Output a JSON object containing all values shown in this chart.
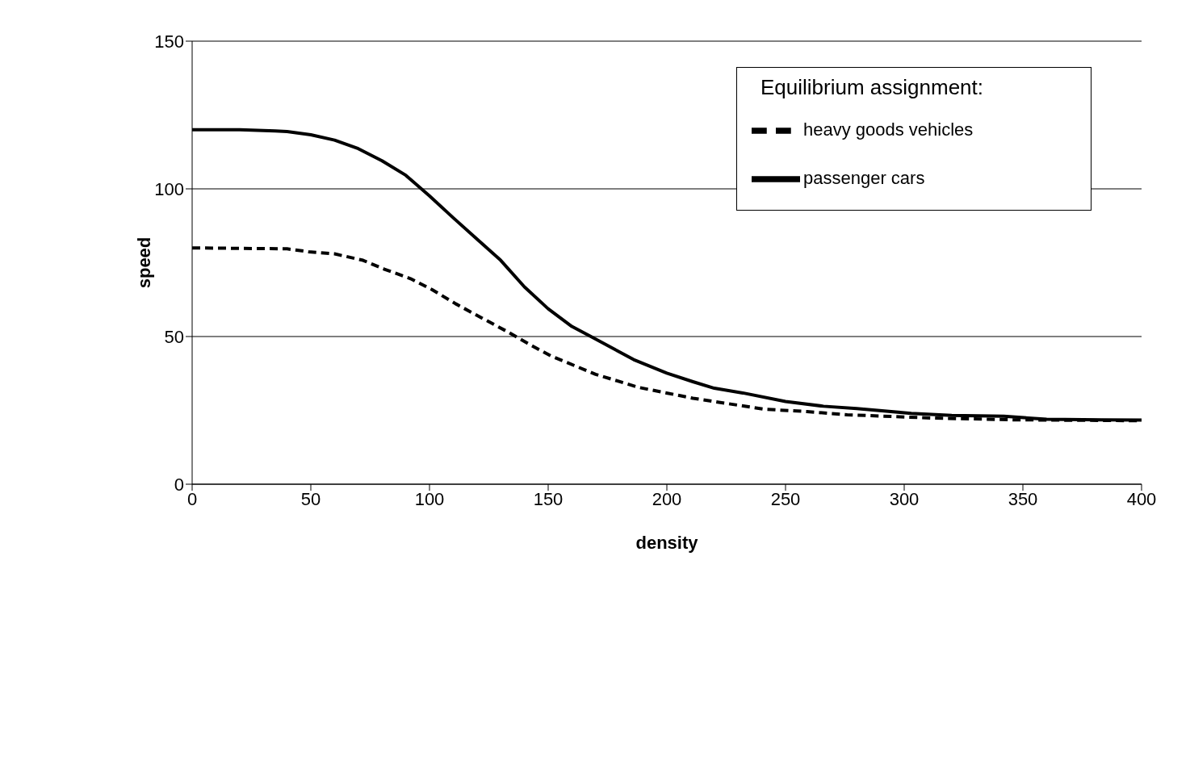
{
  "chart_data": {
    "type": "line",
    "xlabel": "density",
    "ylabel": "speed",
    "legend_title": "Equilibrium assignment:",
    "xlim": [
      0,
      400
    ],
    "xticks": [
      0,
      50,
      100,
      150,
      200,
      250,
      300,
      350,
      400
    ],
    "ylim": [
      0,
      150
    ],
    "yticks": [
      0,
      50,
      100,
      150
    ],
    "grid": "y",
    "legend": "top right",
    "marker": "none",
    "series": [
      {
        "name": "passenger cars",
        "color": "#000000",
        "line_style": "solid",
        "x": [
          0,
          20,
          35,
          40,
          50,
          60,
          70,
          80,
          90,
          100,
          110,
          120,
          130,
          140,
          150,
          160,
          168,
          186,
          200,
          211,
          220,
          232,
          250,
          266,
          280,
          303,
          320,
          342,
          360,
          383,
          400
        ],
        "values": [
          120,
          120,
          119.6,
          119.4,
          118.3,
          116.5,
          113.6,
          109.5,
          104.6,
          97.6,
          90.2,
          83,
          75.8,
          66.8,
          59.4,
          53.4,
          50,
          42.2,
          37.6,
          34.7,
          32.5,
          30.9,
          28,
          26.4,
          25.6,
          24,
          23.3,
          23,
          22,
          21.8,
          21.7
        ]
      },
      {
        "name": "heavy goods vehicles",
        "color": "#000000",
        "line_style": "dashed",
        "x": [
          0,
          40,
          49,
          60,
          72,
          81,
          92,
          101,
          111,
          122,
          132,
          142,
          151,
          170,
          188,
          211,
          241,
          259,
          276,
          312,
          347,
          400
        ],
        "values": [
          80,
          79.7,
          78.7,
          78,
          75.8,
          72.8,
          69.6,
          65.9,
          61.1,
          56.3,
          52,
          47.4,
          43.5,
          37.2,
          32.8,
          29.1,
          25.4,
          24.6,
          23.5,
          22.4,
          21.8,
          21.5
        ]
      }
    ]
  }
}
